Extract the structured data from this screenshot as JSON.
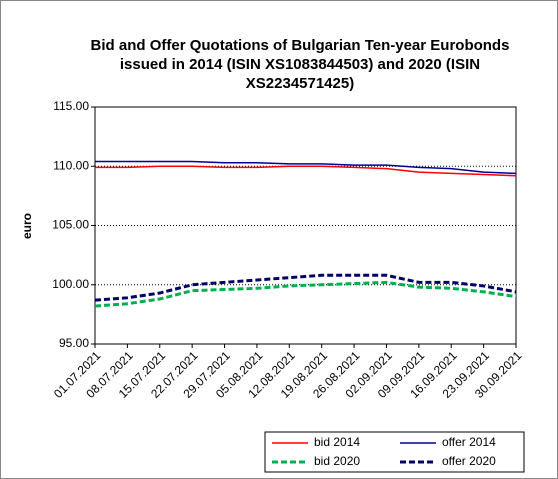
{
  "chart_data": {
    "type": "line",
    "title": [
      "Bid and Offer Quotations of Bulgarian Ten-year Eurobonds",
      "issued in 2014 (ISIN  XS1083844503) and 2020 (ISIN",
      "XS2234571425)"
    ],
    "y_label": "euro",
    "categories": [
      "01.07.2021",
      "08.07.2021",
      "15.07.2021",
      "22.07.2021",
      "29.07.2021",
      "05.08.2021",
      "12.08.2021",
      "19.08.2021",
      "26.08.2021",
      "02.09.2021",
      "09.09.2021",
      "16.09.2021",
      "23.09.2021",
      "30.09.2021"
    ],
    "series": [
      {
        "name": "bid 2014",
        "color": "#ff0000",
        "dashed": false,
        "values": [
          109.9,
          109.9,
          110.0,
          110.0,
          109.9,
          109.9,
          110.0,
          110.0,
          109.9,
          109.8,
          109.5,
          109.4,
          109.3,
          109.2
        ]
      },
      {
        "name": "offer 2014",
        "color": "#000099",
        "dashed": false,
        "values": [
          110.4,
          110.4,
          110.4,
          110.4,
          110.3,
          110.3,
          110.2,
          110.2,
          110.1,
          110.1,
          109.9,
          109.8,
          109.5,
          109.4
        ]
      },
      {
        "name": "bid 2020",
        "color": "#00b050",
        "dashed": true,
        "values": [
          98.2,
          98.4,
          98.8,
          99.5,
          99.6,
          99.7,
          99.9,
          100.0,
          100.1,
          100.2,
          99.8,
          99.7,
          99.4,
          99.0
        ]
      },
      {
        "name": "offer 2020",
        "color": "#000066",
        "dashed": true,
        "values": [
          98.7,
          98.9,
          99.3,
          100.0,
          100.2,
          100.4,
          100.6,
          100.8,
          100.8,
          100.8,
          100.2,
          100.2,
          99.9,
          99.4
        ]
      }
    ],
    "ylim": [
      95,
      115
    ],
    "yticks": [
      {
        "value": 95,
        "label": "95.00"
      },
      {
        "value": 100,
        "label": "100.00"
      },
      {
        "value": 105,
        "label": "105.00"
      },
      {
        "value": 110,
        "label": "110.00"
      },
      {
        "value": 115,
        "label": "115.00"
      }
    ],
    "grid": true
  }
}
